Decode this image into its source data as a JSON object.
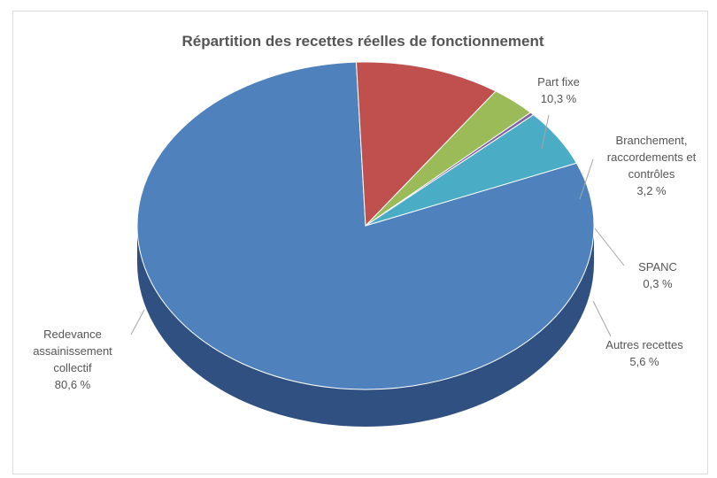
{
  "chart_data": {
    "type": "pie",
    "title": "Répartition des recettes réelles de fonctionnement",
    "slices": [
      {
        "name": "Redevance assainissement collectif",
        "label_lines": [
          "Redevance",
          "assainissement",
          "collectif",
          "80,6 %"
        ],
        "value": 80.6,
        "color": "#4f81bd",
        "side_color": "#2f5080"
      },
      {
        "name": "Part fixe",
        "label_lines": [
          "Part fixe",
          "10,3 %"
        ],
        "value": 10.3,
        "color": "#c0504d",
        "side_color": "#7f2e2c"
      },
      {
        "name": "Branchement, raccordements et contrôles",
        "label_lines": [
          "Branchement,",
          "raccordements et",
          "contrôles",
          "3,2 %"
        ],
        "value": 3.2,
        "color": "#9bbb59",
        "side_color": "#627a33"
      },
      {
        "name": "SPANC",
        "label_lines": [
          "SPANC",
          "0,3 %"
        ],
        "value": 0.3,
        "color": "#8064a2",
        "side_color": "#513d6b"
      },
      {
        "name": "Autres recettes",
        "label_lines": [
          "Autres recettes",
          "5,6 %"
        ],
        "value": 5.6,
        "color": "#4bacc6",
        "side_color": "#2a7388"
      }
    ],
    "legend": "none",
    "perspective": "3d"
  }
}
